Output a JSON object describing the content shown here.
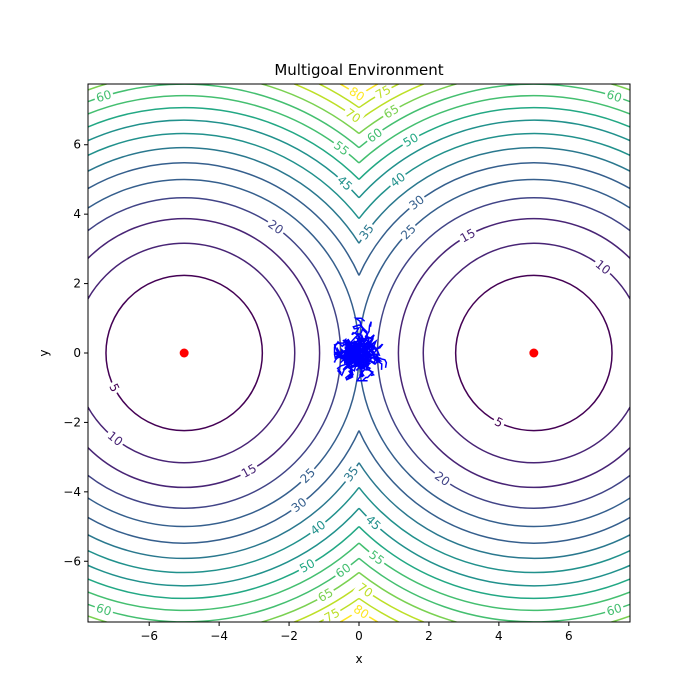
{
  "chart_data": {
    "type": "contour",
    "title": "Multigoal Environment",
    "xlabel": "x",
    "ylabel": "y",
    "xlim": [
      -7.75,
      7.75
    ],
    "ylim": [
      -7.75,
      7.75
    ],
    "x_ticks": [
      -6,
      -4,
      -2,
      0,
      2,
      4,
      6
    ],
    "y_ticks": [
      -6,
      -4,
      -2,
      0,
      2,
      4,
      6
    ],
    "x_tick_labels": [
      "−6",
      "−4",
      "−2",
      "0",
      "2",
      "4",
      "6"
    ],
    "y_tick_labels": [
      "−6",
      "−4",
      "−2",
      "0",
      "2",
      "4",
      "6"
    ],
    "grid": false,
    "contour_levels": [
      5,
      10,
      15,
      20,
      25,
      30,
      35,
      40,
      45,
      50,
      55,
      60,
      65,
      70,
      75,
      80
    ],
    "contour_function": "min over goals of squared distance to goal",
    "goals": [
      {
        "x": -5,
        "y": 0
      },
      {
        "x": 5,
        "y": 0
      }
    ],
    "goal_color": "#ff0000",
    "trajectory_color": "#0000ff",
    "trajectory_region": {
      "x_range": [
        -0.7,
        0.8
      ],
      "y_range": [
        -0.8,
        1.0
      ]
    },
    "colormap": [
      "#440154",
      "#482475",
      "#414487",
      "#355f8d",
      "#2a788e",
      "#21918c",
      "#22a884",
      "#44bf70",
      "#7ad151",
      "#bddf26",
      "#fde725"
    ],
    "contour_labels": [
      {
        "level": 5,
        "text": "5",
        "x": -9.0,
        "y": -2.0,
        "goal": -5
      },
      {
        "level": 5,
        "text": "5",
        "x": 4.0,
        "y": -2.0,
        "goal": 5
      },
      {
        "level": 10,
        "text": "10",
        "x": -7.0,
        "y": -2.5,
        "goal": -5
      },
      {
        "level": 10,
        "text": "10",
        "x": 7.0,
        "y": 2.5,
        "goal": 5
      },
      {
        "level": 15,
        "text": "15",
        "x": -3.2,
        "y": -3.3,
        "goal": -5
      },
      {
        "level": 15,
        "text": "15",
        "x": 3.1,
        "y": 3.4,
        "goal": 5
      },
      {
        "level": 20,
        "text": "20",
        "x": -2.4,
        "y": 3.6,
        "goal": -5
      },
      {
        "level": 20,
        "text": "20",
        "x": 2.4,
        "y": -3.6,
        "goal": 5
      },
      {
        "level": 25,
        "text": "25",
        "x": -1.5,
        "y": -3.5,
        "goal": -5
      },
      {
        "level": 25,
        "text": "25",
        "x": 1.4,
        "y": 3.5,
        "goal": 5
      },
      {
        "level": 30,
        "text": "30",
        "x": -1.7,
        "y": -4.4,
        "goal": -5
      },
      {
        "level": 30,
        "text": "30",
        "x": 1.6,
        "y": 4.4,
        "goal": 5
      },
      {
        "level": 35,
        "text": "35",
        "x": -0.2,
        "y": -3.5,
        "goal": -5
      },
      {
        "level": 35,
        "text": "35",
        "x": 0.2,
        "y": 3.5,
        "goal": 5
      },
      {
        "level": 40,
        "text": "40",
        "x": -1.2,
        "y": -5.0,
        "goal": -5
      },
      {
        "level": 40,
        "text": "40",
        "x": 1.1,
        "y": 5.0,
        "goal": 5
      },
      {
        "level": 45,
        "text": "45",
        "x": 0.4,
        "y": -4.9,
        "goal": 5
      },
      {
        "level": 45,
        "text": "45",
        "x": -0.4,
        "y": 4.9,
        "goal": -5
      },
      {
        "level": 50,
        "text": "50",
        "x": -1.5,
        "y": -6.1,
        "goal": -5
      },
      {
        "level": 50,
        "text": "50",
        "x": 1.5,
        "y": 6.1,
        "goal": 5
      },
      {
        "level": 55,
        "text": "55",
        "x": 0.5,
        "y": -5.9,
        "goal": 5
      },
      {
        "level": 55,
        "text": "55",
        "x": -0.5,
        "y": 5.9,
        "goal": -5
      },
      {
        "level": 60,
        "text": "60",
        "x": -0.5,
        "y": -6.2,
        "goal": -5
      },
      {
        "level": 60,
        "text": "60",
        "x": 0.5,
        "y": 6.2,
        "goal": 5
      },
      {
        "level": 60,
        "text": "60",
        "x": -7.3,
        "y": 7.4,
        "goal": -5
      },
      {
        "level": 60,
        "text": "60",
        "x": 7.3,
        "y": 7.4,
        "goal": 5
      },
      {
        "level": 60,
        "text": "60",
        "x": -7.3,
        "y": -7.4,
        "goal": -5
      },
      {
        "level": 60,
        "text": "60",
        "x": 7.3,
        "y": -7.4,
        "goal": 5
      },
      {
        "level": 65,
        "text": "65",
        "x": -1.0,
        "y": -6.9,
        "goal": -5
      },
      {
        "level": 65,
        "text": "65",
        "x": 0.9,
        "y": 7.0,
        "goal": 5
      },
      {
        "level": 70,
        "text": "70",
        "x": 0.2,
        "y": -6.8,
        "goal": 5
      },
      {
        "level": 70,
        "text": "70",
        "x": -0.2,
        "y": 6.8,
        "goal": -5
      },
      {
        "level": 75,
        "text": "75",
        "x": -0.8,
        "y": -7.5,
        "goal": -5
      },
      {
        "level": 75,
        "text": "75",
        "x": 0.7,
        "y": 7.5,
        "goal": 5
      },
      {
        "level": 80,
        "text": "80",
        "x": 0.1,
        "y": -7.4,
        "goal": 5
      },
      {
        "level": 80,
        "text": "80",
        "x": -0.1,
        "y": 7.4,
        "goal": -5
      }
    ]
  }
}
